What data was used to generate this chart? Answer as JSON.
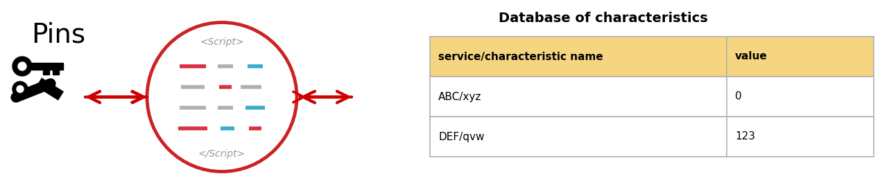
{
  "bg_color": "#ffffff",
  "figsize": [
    12.82,
    2.81
  ],
  "dpi": 100,
  "pins_text": "Pins",
  "script_open": "<Script>",
  "script_close": "</Script>",
  "script_color": "#999999",
  "script_fontsize": 10,
  "circle_color": "#cc2222",
  "circle_linewidth": 3.5,
  "arrow_color": "#cc0000",
  "lines_red": "#d93040",
  "lines_blue": "#3aabcc",
  "lines_gray": "#b0b0b0",
  "table_title": "Database of characteristics",
  "table_title_fontsize": 14,
  "header_bg": "#f5d580",
  "col1_header": "service/characteristic name",
  "col2_header": "value",
  "rows": [
    [
      "ABC/xyz",
      "0"
    ],
    [
      "DEF/qvw",
      "123"
    ]
  ],
  "table_fontsize": 11,
  "header_fontsize": 11
}
